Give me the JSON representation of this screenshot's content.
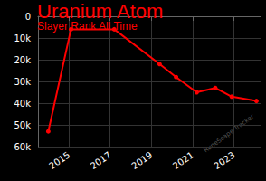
{
  "chart_data": {
    "type": "line",
    "title": "Uranium Atom",
    "subtitle": "Slayer Rank All Time",
    "annotations": [
      "RuneScape Tracker"
    ],
    "x": [
      2014.0,
      2015.1,
      2017.2,
      2019.4,
      2020.2,
      2021.2,
      2022.1,
      2022.9,
      2024.1
    ],
    "values": [
      53000,
      6000,
      6000,
      22000,
      28000,
      35000,
      33000,
      37000,
      39000
    ],
    "color": "#ff0000",
    "marker": "circle",
    "line_style": "solid",
    "xlim": [
      2013.5,
      2024.3
    ],
    "xticks": [
      2015,
      2017,
      2019,
      2021,
      2023
    ],
    "ylim": [
      0,
      60000
    ],
    "inverted_y": true,
    "yticks": [
      0,
      {
        "value": 10000,
        "label": "10k"
      },
      {
        "value": 20000,
        "label": "20k"
      },
      {
        "value": 30000,
        "label": "30k"
      },
      {
        "value": 40000,
        "label": "40k"
      },
      {
        "value": 50000,
        "label": "50k"
      },
      {
        "value": 60000,
        "label": "60k"
      }
    ],
    "grid": true
  }
}
